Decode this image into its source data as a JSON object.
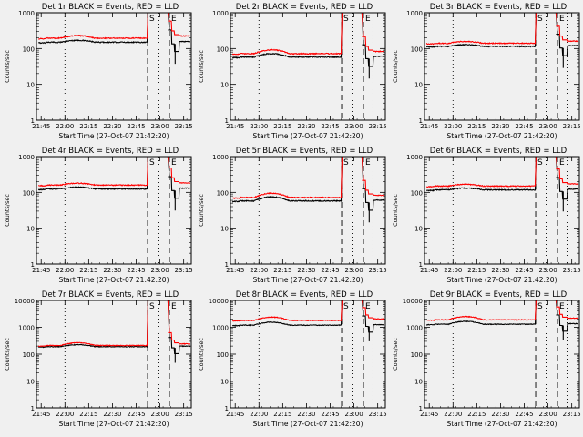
{
  "page": {
    "background": "#f0f0f0"
  },
  "colors": {
    "events": "#000000",
    "lld": "#ff0000",
    "axis": "#000000"
  },
  "chart_data": [
    {
      "type": "line",
      "title": "Det 1r BLACK = Events, RED = LLD",
      "xlabel": "Start Time (27-Oct-07 21:42:20)",
      "ylabel": "Counts/sec",
      "yscale": "log",
      "ylim": [
        1,
        1000
      ],
      "y_ticks": [
        "1",
        "10",
        "100",
        "1000"
      ],
      "xlim": [
        21.7,
        23.33
      ],
      "x_ticks": [
        "21:45",
        "22:00",
        "22:15",
        "22:30",
        "22:45",
        "23:00",
        "23:15"
      ],
      "markers": [
        {
          "x": 22.0,
          "style": "dotted",
          "label": ""
        },
        {
          "x": 22.87,
          "style": "dashed",
          "label": "S"
        },
        {
          "x": 22.98,
          "style": "dotted",
          "label": ""
        },
        {
          "x": 23.1,
          "style": "dashed",
          "label": "E"
        },
        {
          "x": 23.2,
          "style": "dotted",
          "label": ""
        }
      ],
      "series": [
        {
          "name": "Events",
          "color": "#000000",
          "base": 150,
          "bump": 170
        },
        {
          "name": "LLD",
          "color": "#ff0000",
          "base": 195,
          "bump": 230
        }
      ]
    },
    {
      "type": "line",
      "title": "Det 2r BLACK = Events, RED = LLD",
      "xlabel": "Start Time (27-Oct-07 21:42:20)",
      "ylabel": "Counts/sec",
      "yscale": "log",
      "ylim": [
        1,
        1000
      ],
      "y_ticks": [
        "1",
        "10",
        "100",
        "1000"
      ],
      "xlim": [
        21.7,
        23.33
      ],
      "x_ticks": [
        "21:45",
        "22:00",
        "22:15",
        "22:30",
        "22:45",
        "23:00",
        "23:15"
      ],
      "markers": [
        {
          "x": 22.0,
          "style": "dotted",
          "label": ""
        },
        {
          "x": 22.87,
          "style": "dashed",
          "label": "S"
        },
        {
          "x": 22.98,
          "style": "dotted",
          "label": ""
        },
        {
          "x": 23.1,
          "style": "dashed",
          "label": "E"
        },
        {
          "x": 23.2,
          "style": "dotted",
          "label": ""
        }
      ],
      "series": [
        {
          "name": "Events",
          "color": "#000000",
          "base": 58,
          "bump": 72
        },
        {
          "name": "LLD",
          "color": "#ff0000",
          "base": 72,
          "bump": 92
        }
      ]
    },
    {
      "type": "line",
      "title": "Det 3r BLACK = Events, RED = LLD",
      "xlabel": "Start Time (27-Oct-07 21:42:20)",
      "ylabel": "Counts/sec",
      "yscale": "log",
      "ylim": [
        1,
        1000
      ],
      "y_ticks": [
        "1",
        "10",
        "100",
        "1000"
      ],
      "xlim": [
        21.7,
        23.33
      ],
      "x_ticks": [
        "21:45",
        "22:00",
        "22:15",
        "22:30",
        "22:45",
        "23:00",
        "23:15"
      ],
      "markers": [
        {
          "x": 22.0,
          "style": "dotted",
          "label": ""
        },
        {
          "x": 22.87,
          "style": "dashed",
          "label": "S"
        },
        {
          "x": 22.98,
          "style": "dotted",
          "label": ""
        },
        {
          "x": 23.1,
          "style": "dashed",
          "label": "E"
        },
        {
          "x": 23.2,
          "style": "dotted",
          "label": ""
        }
      ],
      "series": [
        {
          "name": "Events",
          "color": "#000000",
          "base": 115,
          "bump": 128
        },
        {
          "name": "LLD",
          "color": "#ff0000",
          "base": 140,
          "bump": 158
        }
      ]
    },
    {
      "type": "line",
      "title": "Det 4r BLACK = Events, RED = LLD",
      "xlabel": "Start Time (27-Oct-07 21:42:20)",
      "ylabel": "Counts/sec",
      "yscale": "log",
      "ylim": [
        1,
        1000
      ],
      "y_ticks": [
        "1",
        "10",
        "100",
        "1000"
      ],
      "xlim": [
        21.7,
        23.33
      ],
      "x_ticks": [
        "21:45",
        "22:00",
        "22:15",
        "22:30",
        "22:45",
        "23:00",
        "23:15"
      ],
      "markers": [
        {
          "x": 22.0,
          "style": "dotted",
          "label": ""
        },
        {
          "x": 22.87,
          "style": "dashed",
          "label": "S"
        },
        {
          "x": 22.98,
          "style": "dotted",
          "label": ""
        },
        {
          "x": 23.1,
          "style": "dashed",
          "label": "E"
        },
        {
          "x": 23.2,
          "style": "dotted",
          "label": ""
        }
      ],
      "series": [
        {
          "name": "Events",
          "color": "#000000",
          "base": 125,
          "bump": 140
        },
        {
          "name": "LLD",
          "color": "#ff0000",
          "base": 160,
          "bump": 180
        }
      ]
    },
    {
      "type": "line",
      "title": "Det 5r BLACK = Events, RED = LLD",
      "xlabel": "Start Time (27-Oct-07 21:42:20)",
      "ylabel": "Counts/sec",
      "yscale": "log",
      "ylim": [
        1,
        1000
      ],
      "y_ticks": [
        "1",
        "10",
        "100",
        "1000"
      ],
      "xlim": [
        21.7,
        23.33
      ],
      "x_ticks": [
        "21:45",
        "22:00",
        "22:15",
        "22:30",
        "22:45",
        "23:00",
        "23:15"
      ],
      "markers": [
        {
          "x": 22.0,
          "style": "dotted",
          "label": ""
        },
        {
          "x": 22.87,
          "style": "dashed",
          "label": "S"
        },
        {
          "x": 22.98,
          "style": "dotted",
          "label": ""
        },
        {
          "x": 23.1,
          "style": "dashed",
          "label": "E"
        },
        {
          "x": 23.2,
          "style": "dotted",
          "label": ""
        }
      ],
      "series": [
        {
          "name": "Events",
          "color": "#000000",
          "base": 58,
          "bump": 75
        },
        {
          "name": "LLD",
          "color": "#ff0000",
          "base": 72,
          "bump": 95
        }
      ]
    },
    {
      "type": "line",
      "title": "Det 6r BLACK = Events, RED = LLD",
      "xlabel": "Start Time (27-Oct-07 21:42:20)",
      "ylabel": "Counts/sec",
      "yscale": "log",
      "ylim": [
        1,
        1000
      ],
      "y_ticks": [
        "1",
        "10",
        "100",
        "1000"
      ],
      "xlim": [
        21.7,
        23.33
      ],
      "x_ticks": [
        "21:45",
        "22:00",
        "22:15",
        "22:30",
        "22:45",
        "23:00",
        "23:15"
      ],
      "markers": [
        {
          "x": 22.0,
          "style": "dotted",
          "label": ""
        },
        {
          "x": 22.87,
          "style": "dashed",
          "label": "S"
        },
        {
          "x": 22.98,
          "style": "dotted",
          "label": ""
        },
        {
          "x": 23.1,
          "style": "dashed",
          "label": "E"
        },
        {
          "x": 23.2,
          "style": "dotted",
          "label": ""
        }
      ],
      "series": [
        {
          "name": "Events",
          "color": "#000000",
          "base": 118,
          "bump": 132
        },
        {
          "name": "LLD",
          "color": "#ff0000",
          "base": 150,
          "bump": 168
        }
      ]
    },
    {
      "type": "line",
      "title": "Det 7r BLACK = Events, RED = LLD",
      "xlabel": "Start Time (27-Oct-07 21:42:20)",
      "ylabel": "Counts/sec",
      "yscale": "log",
      "ylim": [
        1,
        10000
      ],
      "y_ticks": [
        "1",
        "10",
        "100",
        "1000",
        "10000"
      ],
      "xlim": [
        21.7,
        23.33
      ],
      "x_ticks": [
        "21:45",
        "22:00",
        "22:15",
        "22:30",
        "22:45",
        "23:00",
        "23:15"
      ],
      "markers": [
        {
          "x": 22.0,
          "style": "dotted",
          "label": ""
        },
        {
          "x": 22.87,
          "style": "dashed",
          "label": "S"
        },
        {
          "x": 22.98,
          "style": "dotted",
          "label": ""
        },
        {
          "x": 23.1,
          "style": "dashed",
          "label": "E"
        },
        {
          "x": 23.2,
          "style": "dotted",
          "label": ""
        }
      ],
      "series": [
        {
          "name": "Events",
          "color": "#000000",
          "base": 190,
          "bump": 225
        },
        {
          "name": "LLD",
          "color": "#ff0000",
          "base": 210,
          "bump": 265
        }
      ]
    },
    {
      "type": "line",
      "title": "Det 8r BLACK = Events, RED = LLD",
      "xlabel": "Start Time (27-Oct-07 21:42:20)",
      "ylabel": "Counts/sec",
      "yscale": "log",
      "ylim": [
        1,
        10000
      ],
      "y_ticks": [
        "1",
        "10",
        "100",
        "1000",
        "10000"
      ],
      "xlim": [
        21.7,
        23.33
      ],
      "x_ticks": [
        "21:45",
        "22:00",
        "22:15",
        "22:30",
        "22:45",
        "23:00",
        "23:15"
      ],
      "markers": [
        {
          "x": 22.0,
          "style": "dotted",
          "label": ""
        },
        {
          "x": 22.87,
          "style": "dashed",
          "label": "S"
        },
        {
          "x": 22.98,
          "style": "dotted",
          "label": ""
        },
        {
          "x": 23.1,
          "style": "dashed",
          "label": "E"
        },
        {
          "x": 23.2,
          "style": "dotted",
          "label": ""
        }
      ],
      "series": [
        {
          "name": "Events",
          "color": "#000000",
          "base": 1200,
          "bump": 1550
        },
        {
          "name": "LLD",
          "color": "#ff0000",
          "base": 1800,
          "bump": 2400
        }
      ]
    },
    {
      "type": "line",
      "title": "Det 9r BLACK = Events, RED = LLD",
      "xlabel": "Start Time (27-Oct-07 21:42:20)",
      "ylabel": "Counts/sec",
      "yscale": "log",
      "ylim": [
        1,
        10000
      ],
      "y_ticks": [
        "1",
        "10",
        "100",
        "1000",
        "10000"
      ],
      "xlim": [
        21.7,
        23.33
      ],
      "x_ticks": [
        "21:45",
        "22:00",
        "22:15",
        "22:30",
        "22:45",
        "23:00",
        "23:15"
      ],
      "markers": [
        {
          "x": 22.0,
          "style": "dotted",
          "label": ""
        },
        {
          "x": 22.87,
          "style": "dashed",
          "label": "S"
        },
        {
          "x": 22.98,
          "style": "dotted",
          "label": ""
        },
        {
          "x": 23.1,
          "style": "dashed",
          "label": "E"
        },
        {
          "x": 23.2,
          "style": "dotted",
          "label": ""
        }
      ],
      "series": [
        {
          "name": "Events",
          "color": "#000000",
          "base": 1300,
          "bump": 1650
        },
        {
          "name": "LLD",
          "color": "#ff0000",
          "base": 1900,
          "bump": 2500
        }
      ]
    }
  ]
}
